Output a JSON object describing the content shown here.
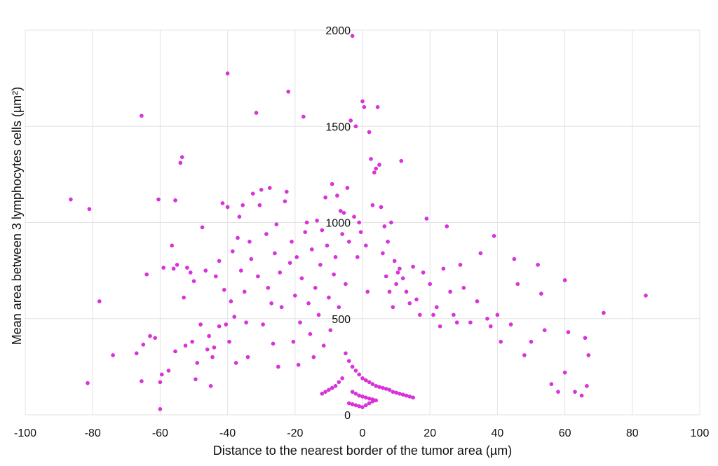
{
  "chart_data": {
    "type": "scatter",
    "title": "",
    "xlabel": "Distance to the nearest border of the tumor area (µm)",
    "ylabel": "Mean area between 3 lymphocytes cells (µm²)",
    "xlim": [
      -100,
      100
    ],
    "ylim": [
      0,
      2000
    ],
    "x_ticks": [
      -100,
      -80,
      -60,
      -40,
      -20,
      0,
      20,
      40,
      60,
      80,
      100
    ],
    "y_ticks": [
      0,
      500,
      1000,
      1500,
      2000
    ],
    "x_tick_labels": [
      "-100",
      "-80",
      "-60",
      "-40",
      "-20",
      "0",
      "20",
      "40",
      "60",
      "80",
      "100"
    ],
    "y_tick_labels": [
      "0",
      "500",
      "1000",
      "1500",
      "2000"
    ],
    "grid": true,
    "legend": "none",
    "marker_color": "#e22ee2",
    "marker_edge_color": "#b01cb0",
    "series": [
      {
        "points": [
          [
            -86.5,
            1120
          ],
          [
            -81,
            1070
          ],
          [
            -78,
            590
          ],
          [
            -81.5,
            165
          ],
          [
            -74,
            310
          ],
          [
            -67,
            320
          ],
          [
            -65.5,
            1555
          ],
          [
            -65.5,
            175
          ],
          [
            -65,
            365
          ],
          [
            -64,
            730
          ],
          [
            -63,
            410
          ],
          [
            -61.5,
            400
          ],
          [
            -60.5,
            1120
          ],
          [
            -60,
            30
          ],
          [
            -60,
            170
          ],
          [
            -59.5,
            210
          ],
          [
            -59,
            765
          ],
          [
            -57.5,
            230
          ],
          [
            -56.5,
            880
          ],
          [
            -56,
            760
          ],
          [
            -55.5,
            330
          ],
          [
            -55.5,
            1115
          ],
          [
            -55,
            780
          ],
          [
            -54,
            1310
          ],
          [
            -53.5,
            1340
          ],
          [
            -53,
            610
          ],
          [
            -52.5,
            360
          ],
          [
            -52,
            765
          ],
          [
            -51,
            740
          ],
          [
            -50.5,
            380
          ],
          [
            -50,
            695
          ],
          [
            -49.5,
            185
          ],
          [
            -49,
            270
          ],
          [
            -48,
            470
          ],
          [
            -47.5,
            975
          ],
          [
            -46.5,
            750
          ],
          [
            -46,
            340
          ],
          [
            -45.5,
            410
          ],
          [
            -45,
            150
          ],
          [
            -44.5,
            300
          ],
          [
            -44,
            350
          ],
          [
            -43.5,
            720
          ],
          [
            -42.5,
            800
          ],
          [
            -42.5,
            460
          ],
          [
            -41.5,
            1100
          ],
          [
            -41,
            650
          ],
          [
            -40.5,
            470
          ],
          [
            -40,
            1775
          ],
          [
            -40,
            1080
          ],
          [
            -39.5,
            380
          ],
          [
            -39,
            590
          ],
          [
            -38.5,
            850
          ],
          [
            -38,
            510
          ],
          [
            -37.5,
            270
          ],
          [
            -37,
            920
          ],
          [
            -36.5,
            1030
          ],
          [
            -36,
            750
          ],
          [
            -35.5,
            1090
          ],
          [
            -35,
            640
          ],
          [
            -34.5,
            480
          ],
          [
            -34,
            300
          ],
          [
            -33.5,
            900
          ],
          [
            -33,
            810
          ],
          [
            -32.5,
            1150
          ],
          [
            -31.5,
            1570
          ],
          [
            -31,
            720
          ],
          [
            -30.5,
            1090
          ],
          [
            -30,
            1170
          ],
          [
            -29.5,
            470
          ],
          [
            -28.5,
            940
          ],
          [
            -28,
            660
          ],
          [
            -27.5,
            1180
          ],
          [
            -27,
            580
          ],
          [
            -26.5,
            370
          ],
          [
            -26,
            840
          ],
          [
            -25.5,
            990
          ],
          [
            -25,
            250
          ],
          [
            -24.5,
            740
          ],
          [
            -24,
            560
          ],
          [
            -23,
            1110
          ],
          [
            -22.5,
            1160
          ],
          [
            -22,
            1680
          ],
          [
            -21.5,
            790
          ],
          [
            -21,
            900
          ],
          [
            -20.5,
            380
          ],
          [
            -20,
            620
          ],
          [
            -19.5,
            820
          ],
          [
            -19,
            260
          ],
          [
            -18.5,
            480
          ],
          [
            -18,
            710
          ],
          [
            -17.5,
            1550
          ],
          [
            -17,
            950
          ],
          [
            -16.5,
            1000
          ],
          [
            -16,
            580
          ],
          [
            -15.5,
            420
          ],
          [
            -15,
            860
          ],
          [
            -14.5,
            300
          ],
          [
            -14,
            660
          ],
          [
            -13.5,
            1010
          ],
          [
            -13,
            520
          ],
          [
            -12.5,
            780
          ],
          [
            -12,
            960
          ],
          [
            -11.5,
            360
          ],
          [
            -11,
            1130
          ],
          [
            -10.5,
            880
          ],
          [
            -10,
            610
          ],
          [
            -9.5,
            440
          ],
          [
            -9,
            1200
          ],
          [
            -8.5,
            730
          ],
          [
            -8,
            820
          ],
          [
            -7.5,
            1140
          ],
          [
            -7,
            560
          ],
          [
            -6.5,
            1060
          ],
          [
            -6,
            940
          ],
          [
            -5.5,
            1050
          ],
          [
            -5,
            680
          ],
          [
            -4.5,
            1180
          ],
          [
            -4,
            900
          ],
          [
            -3.5,
            1530
          ],
          [
            -3,
            1970
          ],
          [
            -2.5,
            1030
          ],
          [
            -2,
            1500
          ],
          [
            -1.5,
            820
          ],
          [
            -1,
            1000
          ],
          [
            -0.5,
            950
          ],
          [
            0,
            1630
          ],
          [
            0.5,
            1600
          ],
          [
            1,
            880
          ],
          [
            1.5,
            640
          ],
          [
            2,
            1470
          ],
          [
            2.5,
            1330
          ],
          [
            3,
            1090
          ],
          [
            3.5,
            1260
          ],
          [
            4,
            1280
          ],
          [
            4.5,
            1600
          ],
          [
            5,
            1300
          ],
          [
            5.5,
            1080
          ],
          [
            6,
            840
          ],
          [
            6.5,
            980
          ],
          [
            7,
            720
          ],
          [
            7.5,
            900
          ],
          [
            8,
            640
          ],
          [
            8.5,
            1000
          ],
          [
            9,
            560
          ],
          [
            9.5,
            800
          ],
          [
            10,
            680
          ],
          [
            10.5,
            740
          ],
          [
            11,
            760
          ],
          [
            11.5,
            1320
          ],
          [
            12,
            710
          ],
          [
            13,
            640
          ],
          [
            14,
            580
          ],
          [
            15,
            770
          ],
          [
            16,
            600
          ],
          [
            17,
            520
          ],
          [
            18,
            740
          ],
          [
            19,
            1020
          ],
          [
            20,
            680
          ],
          [
            21,
            520
          ],
          [
            22,
            560
          ],
          [
            23,
            460
          ],
          [
            24,
            760
          ],
          [
            25,
            980
          ],
          [
            26,
            640
          ],
          [
            27,
            520
          ],
          [
            28,
            480
          ],
          [
            29,
            780
          ],
          [
            30,
            660
          ],
          [
            32,
            480
          ],
          [
            34,
            590
          ],
          [
            35,
            840
          ],
          [
            37,
            500
          ],
          [
            38,
            460
          ],
          [
            39,
            930
          ],
          [
            40,
            520
          ],
          [
            41,
            380
          ],
          [
            44,
            470
          ],
          [
            45,
            810
          ],
          [
            46,
            680
          ],
          [
            48,
            310
          ],
          [
            50,
            380
          ],
          [
            52,
            780
          ],
          [
            53,
            630
          ],
          [
            54,
            440
          ],
          [
            56,
            160
          ],
          [
            58,
            120
          ],
          [
            60,
            700
          ],
          [
            60,
            220
          ],
          [
            61,
            430
          ],
          [
            63,
            120
          ],
          [
            65,
            100
          ],
          [
            66,
            400
          ],
          [
            66.5,
            150
          ],
          [
            67,
            310
          ],
          [
            71.5,
            530
          ],
          [
            84,
            620
          ],
          [
            -5,
            320
          ],
          [
            -4,
            280
          ],
          [
            -3,
            250
          ],
          [
            -2,
            230
          ],
          [
            -1,
            210
          ],
          [
            0,
            190
          ],
          [
            1,
            180
          ],
          [
            2,
            170
          ],
          [
            3,
            160
          ],
          [
            4,
            150
          ],
          [
            5,
            145
          ],
          [
            6,
            140
          ],
          [
            7,
            135
          ],
          [
            8,
            130
          ],
          [
            -6,
            190
          ],
          [
            -7,
            170
          ],
          [
            -8,
            150
          ],
          [
            -9,
            140
          ],
          [
            -10,
            130
          ],
          [
            -11,
            120
          ],
          [
            -12,
            110
          ],
          [
            9,
            120
          ],
          [
            10,
            115
          ],
          [
            11,
            110
          ],
          [
            12,
            105
          ],
          [
            13,
            100
          ],
          [
            14,
            95
          ],
          [
            15,
            90
          ],
          [
            -3,
            120
          ],
          [
            -2,
            110
          ],
          [
            -1,
            100
          ],
          [
            0,
            95
          ],
          [
            1,
            90
          ],
          [
            2,
            85
          ],
          [
            3,
            80
          ],
          [
            4,
            75
          ],
          [
            -4,
            60
          ],
          [
            -3,
            55
          ],
          [
            -2,
            50
          ],
          [
            -1,
            45
          ],
          [
            0,
            40
          ],
          [
            1,
            50
          ],
          [
            2,
            60
          ],
          [
            3,
            70
          ]
        ]
      }
    ]
  }
}
